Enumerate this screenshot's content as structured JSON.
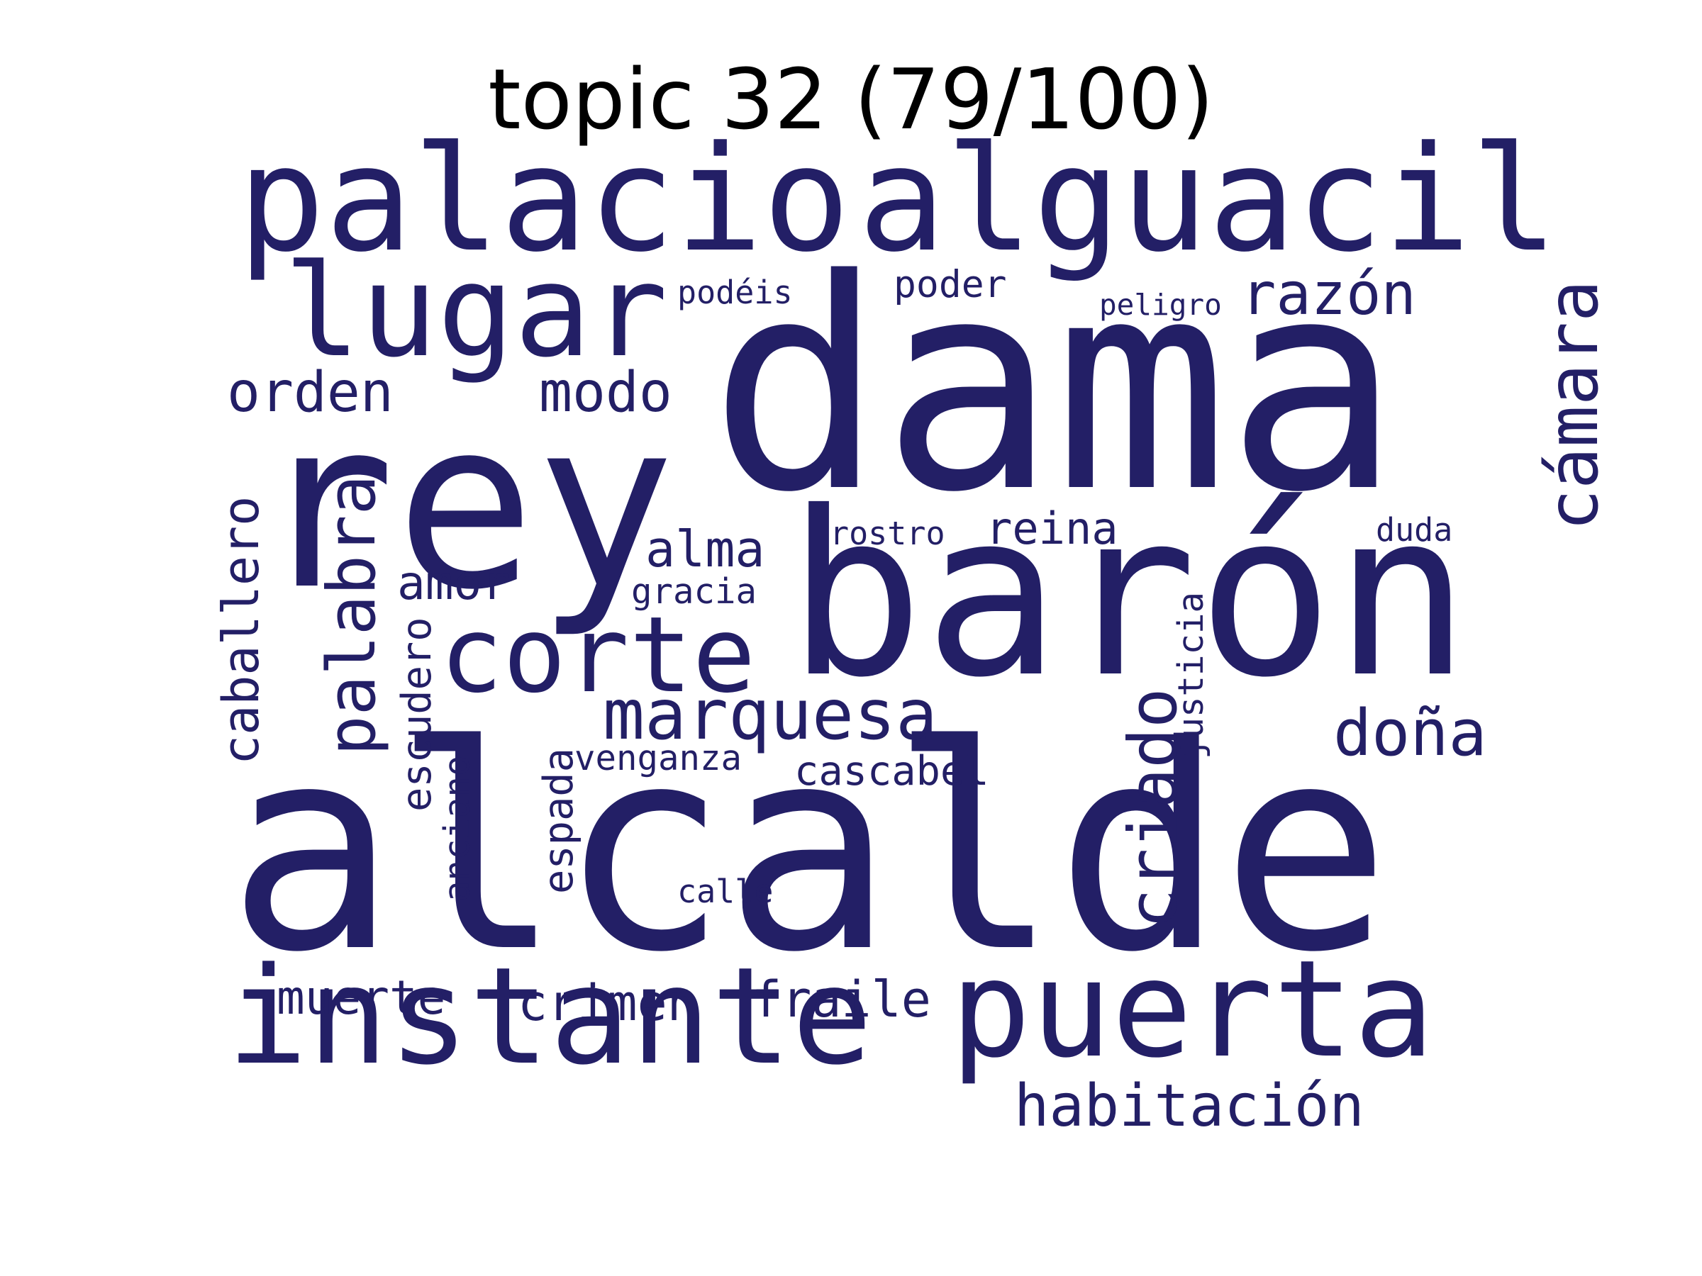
{
  "title": "topic 32 (79/100)",
  "word_color": "#231f66",
  "background_color": "#ffffff",
  "words": [
    {
      "text": "dama",
      "size": 1.0,
      "orientation": "horizontal"
    },
    {
      "text": "alcalde",
      "size": 0.97,
      "orientation": "horizontal"
    },
    {
      "text": "rey",
      "size": 0.8,
      "orientation": "horizontal"
    },
    {
      "text": "barón",
      "size": 0.78,
      "orientation": "horizontal"
    },
    {
      "text": "palacio",
      "size": 0.5,
      "orientation": "horizontal"
    },
    {
      "text": "alguacil",
      "size": 0.5,
      "orientation": "horizontal"
    },
    {
      "text": "instante",
      "size": 0.46,
      "orientation": "horizontal"
    },
    {
      "text": "puerta",
      "size": 0.46,
      "orientation": "horizontal"
    },
    {
      "text": "lugar",
      "size": 0.44,
      "orientation": "horizontal"
    },
    {
      "text": "corte",
      "size": 0.36,
      "orientation": "horizontal"
    },
    {
      "text": "marquesa",
      "size": 0.24,
      "orientation": "horizontal"
    },
    {
      "text": "cámara",
      "size": 0.24,
      "orientation": "vertical"
    },
    {
      "text": "criado",
      "size": 0.23,
      "orientation": "vertical"
    },
    {
      "text": "palabra",
      "size": 0.23,
      "orientation": "vertical"
    },
    {
      "text": "doña",
      "size": 0.22,
      "orientation": "horizontal"
    },
    {
      "text": "habitación",
      "size": 0.2,
      "orientation": "horizontal"
    },
    {
      "text": "razón",
      "size": 0.2,
      "orientation": "horizontal"
    },
    {
      "text": "modo",
      "size": 0.19,
      "orientation": "horizontal"
    },
    {
      "text": "orden",
      "size": 0.19,
      "orientation": "horizontal"
    },
    {
      "text": "caballero",
      "size": 0.17,
      "orientation": "vertical"
    },
    {
      "text": "fraile",
      "size": 0.17,
      "orientation": "horizontal"
    },
    {
      "text": "crimen",
      "size": 0.17,
      "orientation": "horizontal"
    },
    {
      "text": "alma",
      "size": 0.17,
      "orientation": "horizontal"
    },
    {
      "text": "muerte",
      "size": 0.16,
      "orientation": "horizontal"
    },
    {
      "text": "amor",
      "size": 0.16,
      "orientation": "horizontal"
    },
    {
      "text": "reina",
      "size": 0.15,
      "orientation": "horizontal"
    },
    {
      "text": "espada",
      "size": 0.14,
      "orientation": "vertical"
    },
    {
      "text": "escudero",
      "size": 0.14,
      "orientation": "vertical"
    },
    {
      "text": "cascabel",
      "size": 0.14,
      "orientation": "horizontal"
    },
    {
      "text": "poder",
      "size": 0.13,
      "orientation": "horizontal"
    },
    {
      "text": "justicia",
      "size": 0.12,
      "orientation": "vertical"
    },
    {
      "text": "gracia",
      "size": 0.12,
      "orientation": "horizontal"
    },
    {
      "text": "anciano",
      "size": 0.12,
      "orientation": "vertical"
    },
    {
      "text": "venganza",
      "size": 0.12,
      "orientation": "horizontal"
    },
    {
      "text": "podéis",
      "size": 0.11,
      "orientation": "horizontal"
    },
    {
      "text": "calle",
      "size": 0.11,
      "orientation": "horizontal"
    },
    {
      "text": "rostro",
      "size": 0.11,
      "orientation": "horizontal"
    },
    {
      "text": "duda",
      "size": 0.11,
      "orientation": "horizontal"
    },
    {
      "text": "peligro",
      "size": 0.1,
      "orientation": "horizontal"
    }
  ]
}
